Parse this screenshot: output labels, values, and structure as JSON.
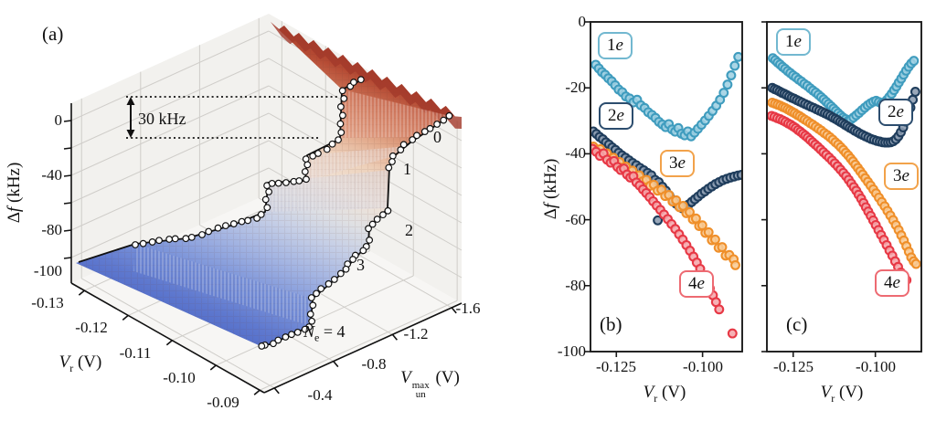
{
  "figure": {
    "panel_a": {
      "letter": "(a)",
      "z_axis": {
        "delta": "Δ",
        "sym": "f",
        "unit": " (kHz)",
        "ticks": [
          "0",
          "-40",
          "-80",
          "-100"
        ]
      },
      "x_axis": {
        "sym": "V",
        "sub": "r",
        "unit": " (V)",
        "ticks": [
          "-0.13",
          "-0.12",
          "-0.11",
          "-0.10",
          "-0.09"
        ]
      },
      "y_axis": {
        "sym": "V",
        "sub": "un",
        "sup": "max",
        "unit": " (V)",
        "ticks": [
          "-0.4",
          "-0.8",
          "-1.2",
          "-1.6"
        ]
      },
      "annotation": "30 kHz",
      "step_labels": [
        "0",
        "1",
        "2",
        "3"
      ],
      "ne_label": {
        "sym": "N",
        "sub": "e",
        "eq": " = 4"
      }
    },
    "panel_b": {
      "letter": "(b)",
      "y_axis": {
        "delta": "Δ",
        "sym": "f",
        "unit": " (kHz)",
        "ticks": [
          "0",
          "-20",
          "-40",
          "-60",
          "-80",
          "-100"
        ]
      },
      "x_axis": {
        "sym": "V",
        "sub": "r",
        "unit": " (V)",
        "ticks": [
          "-0.125",
          "-0.100"
        ]
      }
    },
    "panel_c": {
      "letter": "(c)",
      "x_axis": {
        "sym": "V",
        "sub": "r",
        "unit": " (V)",
        "ticks": [
          "-0.125",
          "-0.100"
        ]
      }
    }
  },
  "chart_data": [
    {
      "type": "surface",
      "panel": "a",
      "xlabel": "V_r (V)",
      "x_range": [
        -0.133,
        -0.089
      ],
      "x_ticks": [
        -0.13,
        -0.12,
        -0.11,
        -0.1,
        -0.09
      ],
      "ylabel": "V_un^max (V)",
      "y_range": [
        -0.4,
        -1.7
      ],
      "y_ticks": [
        -0.4,
        -0.8,
        -1.2,
        -1.6
      ],
      "zlabel": "Δf (kHz)",
      "z_range": [
        -100,
        20
      ],
      "z_ticks": [
        0,
        -40,
        -80,
        -100
      ],
      "plateaus": [
        {
          "electrons": 0,
          "df_kHz": 15
        },
        {
          "electrons": 1,
          "df_kHz": -15
        },
        {
          "electrons": 2,
          "df_kHz": -42
        },
        {
          "electrons": 3,
          "df_kHz": -66
        },
        {
          "electrons": 4,
          "df_kHz": -90
        }
      ],
      "step_height_annotation_kHz": 30,
      "colormap": "coolwarm",
      "trace_marker": "white circles along staircase edges"
    },
    {
      "type": "scatter",
      "panel": "b",
      "xlabel": "V_r (V)",
      "ylabel": "Δf (kHz)",
      "x_range": [
        -0.1325,
        -0.0885
      ],
      "y_range": [
        0,
        -100
      ],
      "x_ticks": [
        -0.125,
        -0.1
      ],
      "y_ticks": [
        0,
        -20,
        -40,
        -60,
        -80,
        -100
      ],
      "series": [
        {
          "num": "1",
          "sym": "e",
          "color": "#3f9cbe",
          "fill": "#9fd0e2",
          "box_color": "#72b8d0",
          "vr_start": -0.131,
          "vr_step": 0.001,
          "df": [
            -13.0,
            -14.1,
            -15.2,
            -16.0,
            -17.1,
            -18.0,
            -19.2,
            -20.5,
            -21.3,
            -22.6,
            -23.2,
            -24.4,
            -23.6,
            -25.3,
            -26.1,
            -27.4,
            -28.2,
            -29.1,
            -30.3,
            -31.1,
            -31.9,
            -31.0,
            -32.6,
            -33.3,
            -32.2,
            -33.9,
            -34.4,
            -33.2,
            -34.7,
            -33.6,
            -32.4,
            -31.2,
            -29.9,
            -28.5,
            -27.0,
            -25.4,
            -23.6,
            -21.5,
            -19.0,
            -16.2,
            -13.3,
            -10.6
          ]
        },
        {
          "num": "2",
          "sym": "e",
          "color": "#1f3d5c",
          "fill": "#8c9cb1",
          "box_color": "#2c4d6e",
          "vr_start": -0.132,
          "vr_step": 0.001,
          "df": [
            -33.2,
            -34.0,
            -34.9,
            -35.6,
            -36.5,
            -37.2,
            -38.1,
            -38.8,
            -39.7,
            -40.5,
            -41.2,
            -42.0,
            -42.8,
            -43.5,
            -44.3,
            -45.0,
            -45.8,
            -46.5,
            -47.9,
            -48.6,
            -50.0,
            -51.2,
            -52.6,
            -54.0,
            -55.1,
            -56.0,
            -56.5,
            -56.1,
            -55.4,
            -54.6,
            -53.8,
            -53.0,
            -52.1,
            -51.4,
            -50.6,
            -49.9,
            -49.2,
            -48.6,
            -48.0,
            -47.6,
            -47.2,
            -46.9,
            -46.6,
            -46.4
          ],
          "extra": [
            [
              -0.113,
              -60.2
            ]
          ]
        },
        {
          "num": "3",
          "sym": "e",
          "color": "#ef8f2a",
          "fill": "#f8cb95",
          "box_color": "#f2a24a",
          "vr_start": -0.132,
          "vr_step": 0.001,
          "df": [
            -37.8,
            -39.0,
            -38.6,
            -40.2,
            -39.9,
            -41.5,
            -41.2,
            -42.9,
            -42.5,
            -44.2,
            -43.9,
            -45.5,
            -45.1,
            -46.9,
            -46.5,
            -48.3,
            -47.9,
            -49.7,
            -49.4,
            -51.2,
            -50.9,
            -52.8,
            -52.5,
            -54.5,
            -54.1,
            -56.2,
            -55.8,
            -58.0,
            -57.7,
            -59.9,
            -59.6,
            -61.9,
            -61.7,
            -64.0,
            -63.8,
            -66.2,
            -66.0,
            -68.5,
            -68.3,
            -70.9,
            -70.7
          ],
          "extra": [
            [
              -0.091,
              -72.0
            ],
            [
              -0.0905,
              -73.8
            ]
          ]
        },
        {
          "num": "4",
          "sym": "e",
          "color": "#e73845",
          "fill": "#f5a6ab",
          "box_color": "#ed6a72",
          "vr_start": -0.132,
          "vr_step": 0.001,
          "df": [
            -38.5,
            -39.4,
            -40.6,
            -39.9,
            -41.8,
            -42.7,
            -42.2,
            -44.0,
            -44.9,
            -44.5,
            -46.3,
            -47.2,
            -46.8,
            -48.7,
            -49.6,
            -50.8,
            -51.9,
            -53.1,
            -54.4,
            -55.7,
            -57.0,
            -58.4,
            -59.8,
            -61.3,
            -62.8,
            -64.4,
            -66.0,
            -67.7,
            -69.4,
            -71.2,
            -73.0,
            -74.9,
            -76.8,
            -78.8,
            -80.8,
            -82.9,
            -85.0,
            -87.2,
            null,
            null,
            null,
            -94.5
          ]
        }
      ]
    },
    {
      "type": "scatter",
      "panel": "c",
      "xlabel": "V_r (V)",
      "ylabel": "Δf (kHz)",
      "x_range": [
        -0.133,
        -0.086
      ],
      "y_range": [
        0,
        -100
      ],
      "x_ticks": [
        -0.125,
        -0.1
      ],
      "y_ticks": [
        0,
        -20,
        -40,
        -60,
        -80,
        -100
      ],
      "series": [
        {
          "num": "1",
          "sym": "e",
          "color": "#3f9cbe",
          "fill": "#9fd0e2",
          "box_color": "#72b8d0",
          "vr_start": -0.1312,
          "vr_step": 0.0008,
          "df": [
            -11.0,
            -11.6,
            -12.3,
            -12.9,
            -13.6,
            -14.2,
            -14.9,
            -15.5,
            -16.2,
            -16.8,
            -17.5,
            -18.1,
            -18.8,
            -19.4,
            -20.1,
            -20.8,
            -21.4,
            -22.1,
            -22.8,
            -23.5,
            -24.2,
            -24.9,
            -25.6,
            -26.3,
            -27.0,
            -27.7,
            -28.4,
            -29.0,
            -29.5,
            -30.0,
            -29.6,
            -29.0,
            -28.3,
            -27.6,
            -26.8,
            -26.0,
            -25.3,
            -24.7,
            -24.2,
            -23.9,
            -24.3,
            -24.8,
            -24.4,
            -23.7,
            -22.8,
            -21.8,
            -20.7,
            -19.6,
            -18.4,
            -17.2,
            -16.0,
            -14.8,
            -13.6,
            -12.6,
            -11.8
          ]
        },
        {
          "num": "2",
          "sym": "e",
          "color": "#1f3d5c",
          "fill": "#8c9cb1",
          "box_color": "#2c4d6e",
          "vr_start": -0.1316,
          "vr_step": 0.0008,
          "df": [
            -20.0,
            -20.4,
            -20.7,
            -21.1,
            -21.5,
            -21.8,
            -22.2,
            -22.6,
            -23.0,
            -23.3,
            -23.7,
            -24.1,
            -24.5,
            -24.9,
            -25.3,
            -25.7,
            -26.1,
            -26.5,
            -26.9,
            -27.3,
            -27.7,
            -28.1,
            -28.5,
            -29.0,
            -29.4,
            -29.8,
            -30.3,
            -30.7,
            -31.2,
            -31.6,
            -32.1,
            -32.5,
            -33.0,
            -33.4,
            -33.9,
            -34.3,
            -34.7,
            -35.1,
            -35.5,
            -35.8,
            -36.1,
            -36.3,
            -36.5,
            -36.6,
            -36.6,
            -36.5,
            -36.2,
            -35.6,
            -34.7,
            -33.5,
            -32.0,
            -30.2,
            -28.2,
            -26.0,
            -23.6,
            -21.2
          ]
        },
        {
          "num": "3",
          "sym": "e",
          "color": "#ef8f2a",
          "fill": "#f8cb95",
          "box_color": "#f2a24a",
          "vr_start": -0.1316,
          "vr_step": 0.0008,
          "df": [
            -24.5,
            -24.8,
            -25.1,
            -25.4,
            -25.8,
            -26.1,
            -26.5,
            -26.9,
            -27.3,
            -27.7,
            -28.2,
            -28.6,
            -29.1,
            -29.6,
            -30.1,
            -30.7,
            -31.2,
            -31.8,
            -32.4,
            -33.0,
            -33.7,
            -34.3,
            -35.0,
            -35.7,
            -36.5,
            -37.2,
            -38.0,
            -38.8,
            -39.7,
            -40.5,
            -41.4,
            -42.3,
            -43.3,
            -44.3,
            -45.3,
            -46.3,
            -47.4,
            -48.5,
            -49.6,
            -50.8,
            -52.0,
            -53.3,
            -54.6,
            -55.9,
            -57.3,
            -58.7,
            -60.1,
            -61.6,
            -63.1,
            -64.7,
            -66.3,
            -68.0,
            -69.7,
            -71.4,
            -72.6,
            -73.4
          ]
        },
        {
          "num": "4",
          "sym": "e",
          "color": "#e73845",
          "fill": "#f5a6ab",
          "box_color": "#ed6a72",
          "vr_start": -0.1316,
          "vr_step": 0.0008,
          "df": [
            -28.5,
            -28.8,
            -29.2,
            -29.5,
            -29.9,
            -30.3,
            -30.8,
            -31.2,
            -31.7,
            -32.2,
            -32.8,
            -33.3,
            -33.9,
            -34.5,
            -35.1,
            -35.8,
            -36.5,
            -37.2,
            -37.9,
            -38.7,
            -39.5,
            -40.3,
            -41.1,
            -42.0,
            -42.9,
            -43.8,
            -44.8,
            -45.8,
            -46.8,
            -47.9,
            -49.0,
            -50.1,
            -51.2,
            -52.4,
            -53.6,
            -54.9,
            -56.2,
            -57.5,
            -58.8,
            -60.2,
            -61.6,
            -63.1,
            -64.6,
            -66.1,
            -67.7,
            -69.3,
            -70.9,
            -72.6,
            -74.3,
            -76.0,
            -77.4,
            -78.3
          ]
        }
      ]
    }
  ]
}
